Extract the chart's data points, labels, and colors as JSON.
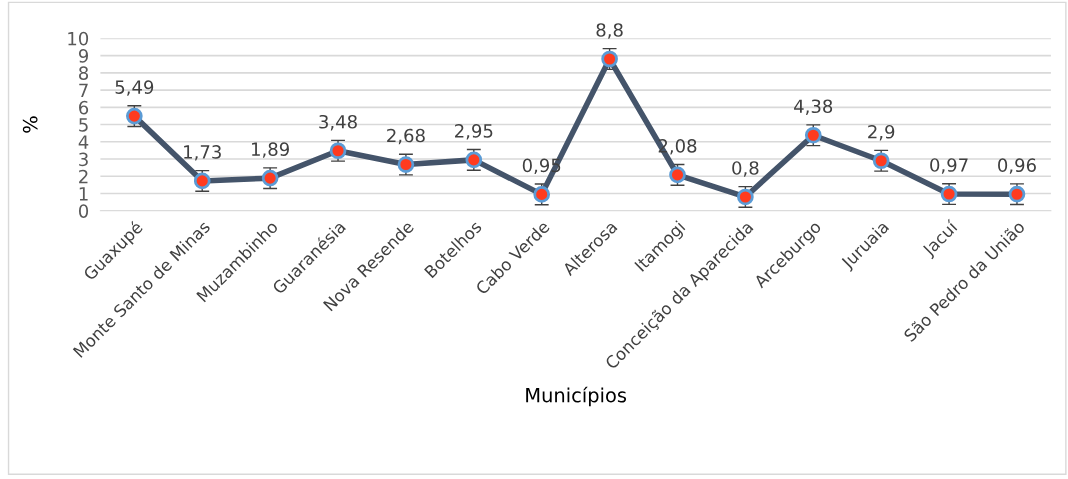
{
  "chart_data": {
    "type": "line",
    "xlabel": "Municípios",
    "ylabel": "%",
    "categories": [
      "Guaxupé",
      "Monte Santo de Minas",
      "Muzambinho",
      "Guaranésia",
      "Nova Resende",
      "Botelhos",
      "Cabo Verde",
      "Alterosa",
      "Itamogi",
      "Conceição da Aparecida",
      "Arceburgo",
      "Juruaia",
      "Jacuí",
      "São Pedro da União"
    ],
    "series": [
      {
        "color": "#44546a",
        "values": [
          5.49,
          1.73,
          1.89,
          3.48,
          2.68,
          2.95,
          0.95,
          8.8,
          2.08,
          0.8,
          4.38,
          2.9,
          0.97,
          0.96
        ],
        "errors": [
          0.6,
          0.6,
          0.6,
          0.6,
          0.6,
          0.6,
          0.6,
          0.6,
          0.6,
          0.6,
          0.6,
          0.6,
          0.6,
          0.6
        ],
        "value_labels": [
          "5,49",
          "1,73",
          "1,89",
          "3,48",
          "2,68",
          "2,95",
          "0,95",
          "8,8",
          "2,08",
          "0,8",
          "4,38",
          "2,9",
          "0,97",
          "0,96"
        ]
      }
    ],
    "ylim": [
      0,
      10
    ],
    "yticks": [
      0,
      1,
      2,
      3,
      4,
      5,
      6,
      7,
      8,
      9,
      10
    ],
    "grid": "y",
    "marker": "circle",
    "line_style": "solid",
    "legend": false
  }
}
